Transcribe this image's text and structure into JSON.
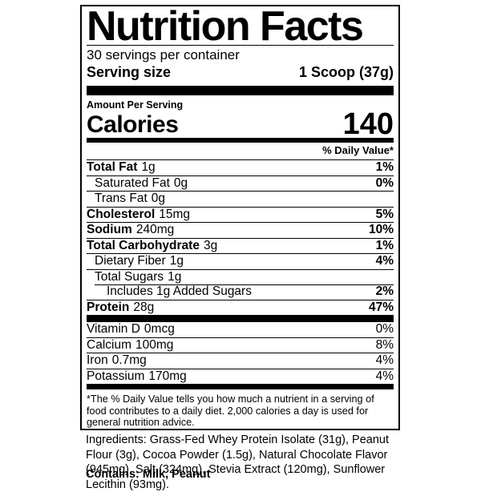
{
  "colors": {
    "text": "#000000",
    "background": "#ffffff",
    "divider": "#000000"
  },
  "label": {
    "title": "Nutrition Facts",
    "servings_per_container": "30 servings per container",
    "serving_size_label": "Serving size",
    "serving_size_value": "1 Scoop (37g)",
    "amount_per_serving": "Amount Per Serving",
    "calories_label": "Calories",
    "calories_value": "140",
    "daily_value_header": "% Daily Value*",
    "nutrients": [
      {
        "name": "Total Fat",
        "amount": "1g",
        "dv": "1%",
        "indent": 0,
        "bold": true
      },
      {
        "name": "Saturated Fat",
        "amount": "0g",
        "dv": "0%",
        "indent": 1,
        "bold": false
      },
      {
        "name": "Trans Fat",
        "amount": "0g",
        "dv": "",
        "indent": 1,
        "bold": false
      },
      {
        "name": "Cholesterol",
        "amount": "15mg",
        "dv": "5%",
        "indent": 0,
        "bold": true
      },
      {
        "name": "Sodium",
        "amount": "240mg",
        "dv": "10%",
        "indent": 0,
        "bold": true
      },
      {
        "name": "Total Carbohydrate",
        "amount": "3g",
        "dv": "1%",
        "indent": 0,
        "bold": true
      },
      {
        "name": "Dietary Fiber",
        "amount": "1g",
        "dv": "4%",
        "indent": 1,
        "bold": false
      },
      {
        "name": "Total Sugars",
        "amount": "1g",
        "dv": "",
        "indent": 1,
        "bold": false
      },
      {
        "name": "Includes 1g Added Sugars",
        "amount": "",
        "dv": "2%",
        "indent": 2,
        "bold": false
      },
      {
        "name": "Protein",
        "amount": "28g",
        "dv": "47%",
        "indent": 0,
        "bold": true
      }
    ],
    "vitamins": [
      {
        "name": "Vitamin D",
        "amount": "0mcg",
        "dv": "0%",
        "indent": 0,
        "bold": false
      },
      {
        "name": "Calcium",
        "amount": "100mg",
        "dv": "8%",
        "indent": 0,
        "bold": false
      },
      {
        "name": "Iron",
        "amount": "0.7mg",
        "dv": "4%",
        "indent": 0,
        "bold": false
      },
      {
        "name": "Potassium",
        "amount": "170mg",
        "dv": "4%",
        "indent": 0,
        "bold": false
      }
    ],
    "footnote": "*The % Daily Value tells you how much a nutrient in a serving of food contributes to a daily diet. 2,000 calories a day is used for general nutrition advice."
  },
  "ingredients": "Ingredients: Grass-Fed Whey Protein Isolate (31g), Peanut Flour (3g), Cocoa Powder (1.5g), Natural Chocolate Flavor (945mg), Salt (324mg), Stevia Extract (120mg), Sunflower Lecithin (93mg).",
  "contains": "Contains: Milk, Peanut"
}
